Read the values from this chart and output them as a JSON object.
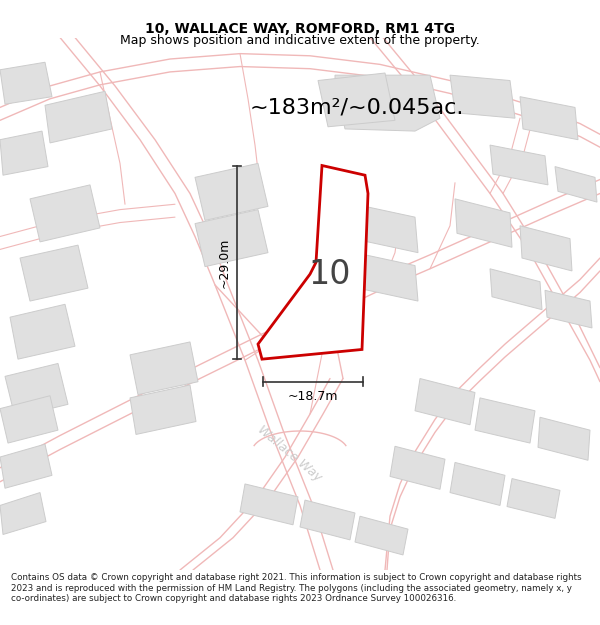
{
  "title": "10, WALLACE WAY, ROMFORD, RM1 4TG",
  "subtitle": "Map shows position and indicative extent of the property.",
  "area_text": "~183m²/~0.045ac.",
  "width_label": "~18.7m",
  "height_label": "~29.0m",
  "number_label": "10",
  "footer_text": "Contains OS data © Crown copyright and database right 2021. This information is subject to Crown copyright and database rights 2023 and is reproduced with the permission of HM Land Registry. The polygons (including the associated geometry, namely x, y co-ordinates) are subject to Crown copyright and database rights 2023 Ordnance Survey 100026316.",
  "bg_color": "#ffffff",
  "map_bg_color": "#ffffff",
  "property_fill": "#ffffff",
  "property_edge": "#cc0000",
  "road_color": "#f0b8b8",
  "building_fill": "#e0e0e0",
  "building_edge": "#cccccc",
  "dim_color": "#333333",
  "street_color": "#cccccc",
  "title_fontsize": 10,
  "subtitle_fontsize": 9,
  "area_fontsize": 16,
  "number_fontsize": 24,
  "dim_fontsize": 9,
  "footer_fontsize": 6.3
}
